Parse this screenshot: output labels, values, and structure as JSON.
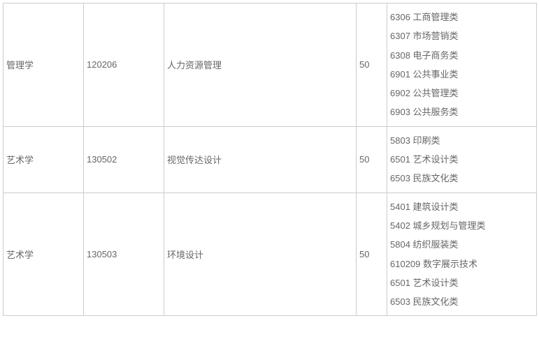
{
  "table": {
    "border_color": "#cccccc",
    "text_color": "#666666",
    "background_color": "#ffffff",
    "font_size": 13,
    "rows": [
      {
        "discipline": "管理学",
        "code": "120206",
        "major": "人力资源管理",
        "quota": "50",
        "categories": [
          "6306 工商管理类",
          "6307 市场营销类",
          "6308 电子商务类",
          "6901 公共事业类",
          "6902 公共管理类",
          "6903 公共服务类"
        ]
      },
      {
        "discipline": "艺术学",
        "code": "130502",
        "major": "视觉传达设计",
        "quota": "50",
        "categories": [
          "5803 印刷类",
          "6501 艺术设计类",
          "6503 民族文化类"
        ]
      },
      {
        "discipline": "艺术学",
        "code": "130503",
        "major": "环境设计",
        "quota": "50",
        "categories": [
          "5401 建筑设计类",
          "5402 城乡规划与管理类",
          "5804 纺织服装类",
          "610209 数字展示技术",
          "6501 艺术设计类",
          "6503 民族文化类"
        ]
      }
    ]
  }
}
